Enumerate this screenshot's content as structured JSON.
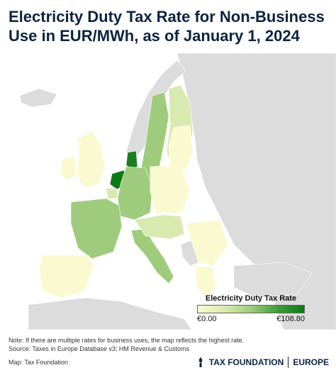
{
  "title": "Electricity Duty Tax Rate for Non-Business Use in EUR/MWh, as of January 1, 2024",
  "legend": {
    "title": "Electricity Duty Tax Rate",
    "min_label": "€0.00",
    "max_label": "€108.80"
  },
  "note": "Note: If there are multiple rates for business uses, the map reflects the highest rate.",
  "source": "Source: Taxes in Europe Database v3; HM Revenue & Customs",
  "credit": "Map: Tax Foundation",
  "logo": {
    "name": "TAX FOUNDATION",
    "region": "EUROPE"
  },
  "colors": {
    "no_data": "#dcdcdc",
    "scale_low": "#fbf9cf",
    "scale_high": "#0d7a16",
    "brand_navy": "#0c2340"
  }
}
